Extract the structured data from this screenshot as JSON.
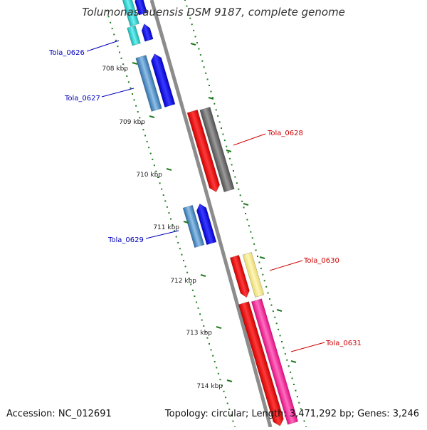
{
  "title": "Tolumonas auensis DSM 9187, complete genome",
  "footer": {
    "accession": "Accession: NC_012691",
    "summary": "Topology: circular; Length: 3,471,292 bp; Genes: 3,246"
  },
  "ticks": [
    "708 kbp",
    "709 kbp",
    "710 kbp",
    "711 kbp",
    "712 kbp",
    "713 kbp",
    "714 kbp"
  ],
  "genes": [
    {
      "name": "Tola_0626",
      "strand": "minus",
      "color": "#0000bb"
    },
    {
      "name": "Tola_0627",
      "strand": "minus",
      "color": "#0000bb"
    },
    {
      "name": "Tola_0628",
      "strand": "plus",
      "color": "#cc0000"
    },
    {
      "name": "Tola_0629",
      "strand": "minus",
      "color": "#0000bb"
    },
    {
      "name": "Tola_0630",
      "strand": "plus",
      "color": "#cc0000"
    },
    {
      "name": "Tola_0631",
      "strand": "plus",
      "color": "#cc0000"
    }
  ],
  "colors": {
    "backbone": "#8c8c8c",
    "tick": "#1f7a1f",
    "cyan": "#22c9c9",
    "steel_blue": "#4a86bf",
    "blue": "#0000ee",
    "red": "#ff0000",
    "gray": "#6e6e6e",
    "yellow": "#f0e68c",
    "pink": "#ff2a9a"
  }
}
